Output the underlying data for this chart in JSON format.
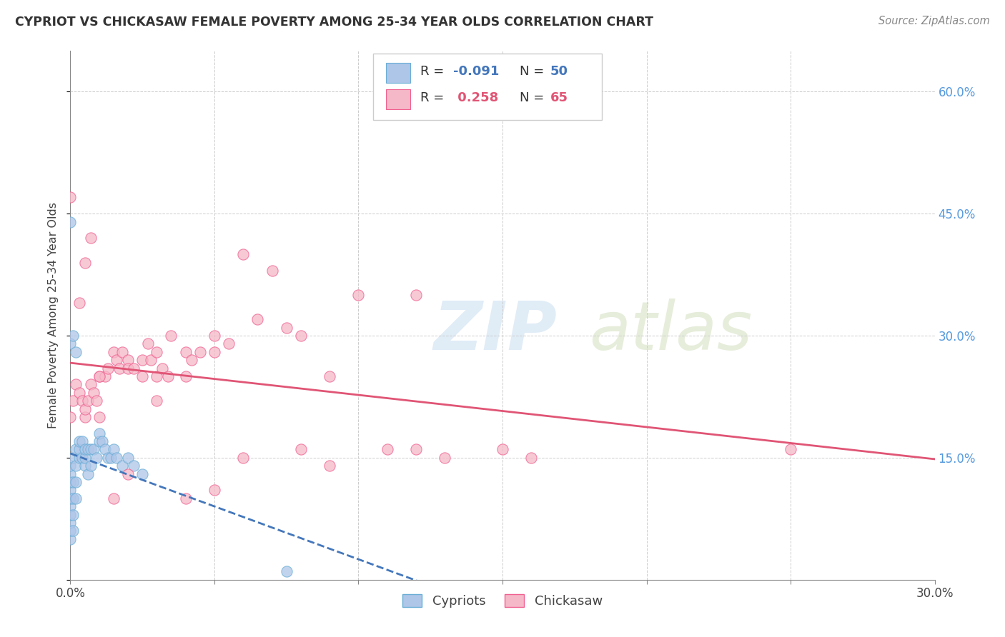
{
  "title": "CYPRIOT VS CHICKASAW FEMALE POVERTY AMONG 25-34 YEAR OLDS CORRELATION CHART",
  "source": "Source: ZipAtlas.com",
  "ylabel": "Female Poverty Among 25-34 Year Olds",
  "xlim": [
    0.0,
    0.3
  ],
  "ylim": [
    0.0,
    0.65
  ],
  "x_tick_positions": [
    0.0,
    0.05,
    0.1,
    0.15,
    0.2,
    0.25,
    0.3
  ],
  "x_tick_labels": [
    "0.0%",
    "",
    "",
    "",
    "",
    "",
    "30.0%"
  ],
  "y_tick_positions": [
    0.0,
    0.15,
    0.3,
    0.45,
    0.6
  ],
  "y_tick_labels_right": [
    "",
    "15.0%",
    "30.0%",
    "45.0%",
    "60.0%"
  ],
  "legend_R_cypriot": "-0.091",
  "legend_N_cypriot": "50",
  "legend_R_chickasaw": "0.258",
  "legend_N_chickasaw": "65",
  "cypriot_fill_color": "#aec6e8",
  "chickasaw_fill_color": "#f5b8c8",
  "cypriot_edge_color": "#6aaed6",
  "chickasaw_edge_color": "#f06090",
  "cypriot_line_color": "#4477bb",
  "chickasaw_line_color": "#e05575",
  "grid_color": "#cccccc",
  "right_tick_color": "#5599dd",
  "cypriot_x": [
    0.0,
    0.0,
    0.0,
    0.0,
    0.0,
    0.0,
    0.0,
    0.0,
    0.0,
    0.0,
    0.001,
    0.001,
    0.001,
    0.001,
    0.001,
    0.002,
    0.002,
    0.002,
    0.002,
    0.003,
    0.003,
    0.003,
    0.004,
    0.004,
    0.005,
    0.005,
    0.005,
    0.006,
    0.006,
    0.007,
    0.007,
    0.008,
    0.009,
    0.01,
    0.01,
    0.011,
    0.012,
    0.013,
    0.014,
    0.015,
    0.016,
    0.018,
    0.02,
    0.022,
    0.025,
    0.0,
    0.0,
    0.001,
    0.002,
    0.075
  ],
  "cypriot_y": [
    0.05,
    0.06,
    0.07,
    0.08,
    0.09,
    0.1,
    0.11,
    0.12,
    0.13,
    0.14,
    0.06,
    0.08,
    0.1,
    0.12,
    0.15,
    0.1,
    0.12,
    0.14,
    0.16,
    0.15,
    0.16,
    0.17,
    0.15,
    0.17,
    0.14,
    0.15,
    0.16,
    0.13,
    0.16,
    0.14,
    0.16,
    0.16,
    0.15,
    0.17,
    0.18,
    0.17,
    0.16,
    0.15,
    0.15,
    0.16,
    0.15,
    0.14,
    0.15,
    0.14,
    0.13,
    0.29,
    0.44,
    0.3,
    0.28,
    0.01
  ],
  "chickasaw_x": [
    0.0,
    0.001,
    0.002,
    0.003,
    0.004,
    0.005,
    0.005,
    0.006,
    0.007,
    0.008,
    0.009,
    0.01,
    0.01,
    0.012,
    0.013,
    0.015,
    0.016,
    0.017,
    0.018,
    0.02,
    0.02,
    0.022,
    0.025,
    0.025,
    0.027,
    0.028,
    0.03,
    0.03,
    0.032,
    0.034,
    0.035,
    0.04,
    0.04,
    0.042,
    0.045,
    0.05,
    0.05,
    0.055,
    0.06,
    0.065,
    0.07,
    0.075,
    0.08,
    0.09,
    0.1,
    0.11,
    0.12,
    0.13,
    0.15,
    0.16,
    0.003,
    0.005,
    0.007,
    0.01,
    0.015,
    0.02,
    0.03,
    0.04,
    0.06,
    0.08,
    0.0,
    0.25,
    0.05,
    0.09,
    0.12
  ],
  "chickasaw_y": [
    0.2,
    0.22,
    0.24,
    0.23,
    0.22,
    0.2,
    0.21,
    0.22,
    0.24,
    0.23,
    0.22,
    0.2,
    0.25,
    0.25,
    0.26,
    0.28,
    0.27,
    0.26,
    0.28,
    0.27,
    0.26,
    0.26,
    0.27,
    0.25,
    0.29,
    0.27,
    0.28,
    0.25,
    0.26,
    0.25,
    0.3,
    0.28,
    0.25,
    0.27,
    0.28,
    0.3,
    0.28,
    0.29,
    0.4,
    0.32,
    0.38,
    0.31,
    0.3,
    0.25,
    0.35,
    0.16,
    0.35,
    0.15,
    0.16,
    0.15,
    0.34,
    0.39,
    0.42,
    0.25,
    0.1,
    0.13,
    0.22,
    0.1,
    0.15,
    0.16,
    0.47,
    0.16,
    0.11,
    0.14,
    0.16
  ]
}
